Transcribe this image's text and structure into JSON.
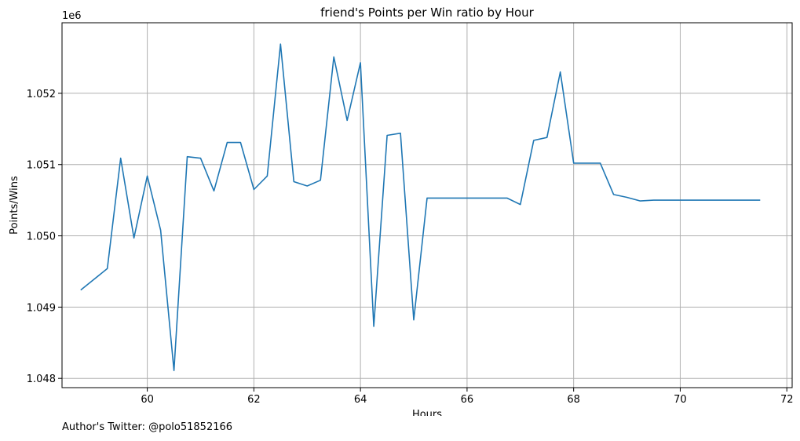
{
  "chart_data": {
    "type": "line",
    "title": "friend's Points per Win ratio by Hour",
    "xlabel": "Hours",
    "ylabel": "Points/Wins",
    "y_offset_label": "1e6",
    "xlim": [
      58.4,
      72.1
    ],
    "ylim": [
      1047870,
      1052990
    ],
    "grid": true,
    "x_ticks": [
      60,
      62,
      64,
      66,
      68,
      70,
      72
    ],
    "x_tick_labels": [
      "60",
      "62",
      "64",
      "66",
      "68",
      "70",
      "72"
    ],
    "y_ticks": [
      1048000,
      1049000,
      1050000,
      1051000,
      1052000
    ],
    "y_tick_labels": [
      "1.048",
      "1.049",
      "1.050",
      "1.051",
      "1.052"
    ],
    "series": [
      {
        "color": "#1f77b4",
        "x": [
          58.75,
          59.0,
          59.25,
          59.5,
          59.75,
          60.0,
          60.25,
          60.5,
          60.75,
          61.0,
          61.25,
          61.5,
          61.75,
          62.0,
          62.25,
          62.5,
          62.75,
          63.0,
          63.25,
          63.5,
          63.75,
          64.0,
          64.25,
          64.5,
          64.75,
          65.0,
          65.25,
          65.5,
          65.75,
          66.0,
          66.25,
          66.5,
          66.75,
          67.0,
          67.25,
          67.5,
          67.75,
          68.0,
          68.25,
          68.5,
          68.75,
          69.0,
          69.25,
          69.5,
          69.75,
          70.0,
          70.25,
          70.5,
          70.75,
          71.0,
          71.25,
          71.5
        ],
        "y": [
          1049240,
          1049390,
          1049540,
          1051090,
          1049970,
          1050840,
          1050080,
          1048110,
          1051110,
          1051090,
          1050630,
          1051310,
          1051310,
          1050650,
          1050840,
          1052690,
          1050760,
          1050700,
          1050780,
          1052510,
          1051620,
          1052430,
          1048730,
          1051410,
          1051440,
          1048820,
          1050530,
          1050530,
          1050530,
          1050530,
          1050530,
          1050530,
          1050530,
          1050440,
          1051340,
          1051380,
          1052300,
          1051020,
          1051020,
          1051020,
          1050580,
          1050540,
          1050490,
          1050500,
          1050500,
          1050500,
          1050500,
          1050500,
          1050500,
          1050500,
          1050500,
          1050500
        ]
      }
    ]
  },
  "footer": {
    "text": "Author's Twitter: @polo51852166"
  }
}
